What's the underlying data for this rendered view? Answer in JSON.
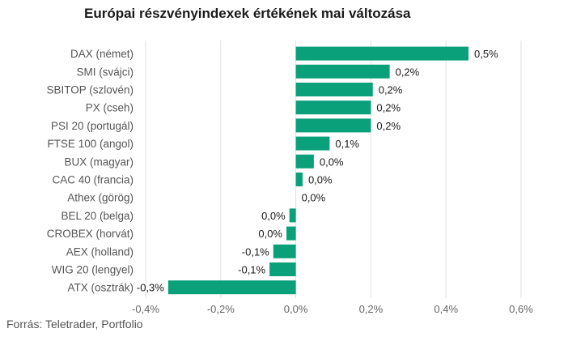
{
  "chart_data": {
    "type": "bar",
    "orientation": "horizontal",
    "title": "Európai részvényindexek értékének mai változása",
    "source": "Forrás: Teletrader, Portfolio",
    "bar_color": "#0aa07a",
    "grid_color": "#e2e2e2",
    "grid": true,
    "xlim": [
      -0.4,
      0.6
    ],
    "x_ticks": [
      -0.4,
      -0.2,
      0.0,
      0.2,
      0.4,
      0.6
    ],
    "x_tick_labels": [
      "-0,4%",
      "-0,2%",
      "0,0%",
      "0,2%",
      "0,4%",
      "0,6%"
    ],
    "categories": [
      "DAX (német)",
      "SMI (svájci)",
      "SBITOP (szlovén)",
      "PX (cseh)",
      "PSI 20 (portugál)",
      "FTSE 100 (angol)",
      "BUX (magyar)",
      "CAC 40 (francia)",
      "Athex (görög)",
      "BEL 20 (belga)",
      "CROBEX (horvát)",
      "AEX (holland)",
      "WIG 20 (lengyel)",
      "ATX (osztrák)"
    ],
    "values": [
      0.46,
      0.25,
      0.205,
      0.2,
      0.2,
      0.09,
      0.048,
      0.018,
      0.0,
      -0.017,
      -0.025,
      -0.06,
      -0.07,
      -0.34
    ],
    "data_labels": [
      "0,5%",
      "0,2%",
      "0,2%",
      "0,2%",
      "0,2%",
      "0,1%",
      "0,0%",
      "0,0%",
      "0,0%",
      "0,0%",
      "0,0%",
      "-0,1%",
      "-0,1%",
      "-0,3%"
    ]
  }
}
